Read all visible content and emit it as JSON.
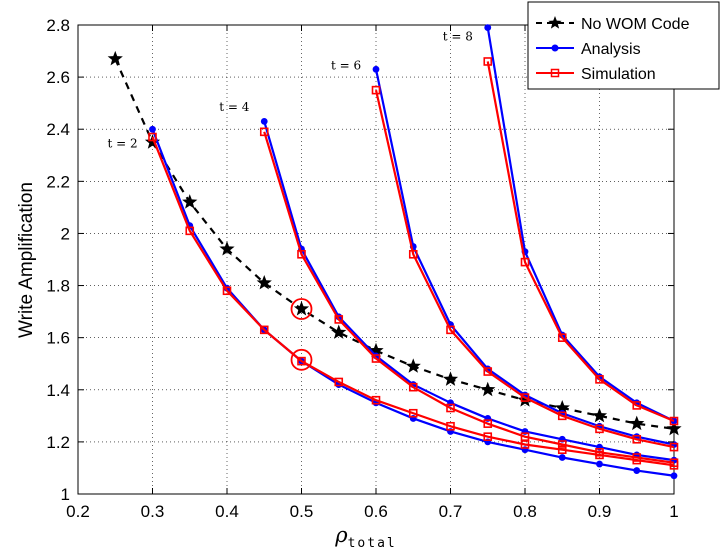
{
  "chart_data": {
    "type": "line",
    "title": "",
    "xlabel": "ρ",
    "xlabel_sub": "total",
    "ylabel": "Write Amplification",
    "xlim": [
      0.2,
      1.0
    ],
    "ylim": [
      1.0,
      2.8
    ],
    "xticks": [
      "0.2",
      "0.3",
      "0.4",
      "0.5",
      "0.6",
      "0.7",
      "0.8",
      "0.9",
      "1"
    ],
    "yticks": [
      "1",
      "1.2",
      "1.4",
      "1.6",
      "1.8",
      "2",
      "2.2",
      "2.4",
      "2.6",
      "2.8"
    ],
    "legend_position": "top-right",
    "legend": [
      "No WOM Code",
      "Analysis",
      "Simulation"
    ],
    "colors": {
      "no_wom": "#000000",
      "analysis": "#0000ff",
      "simulation": "#ff0000",
      "highlight": "#ff0000"
    },
    "t_labels": [
      {
        "text": "t = 2",
        "x": 0.28,
        "y": 2.33
      },
      {
        "text": "t = 4",
        "x": 0.43,
        "y": 2.47
      },
      {
        "text": "t = 6",
        "x": 0.58,
        "y": 2.63
      },
      {
        "text": "t = 8",
        "x": 0.73,
        "y": 2.74
      }
    ],
    "series": [
      {
        "name": "No WOM Code",
        "style": "dashed-star",
        "x": [
          0.25,
          0.3,
          0.35,
          0.4,
          0.45,
          0.5,
          0.55,
          0.6,
          0.65,
          0.7,
          0.75,
          0.8,
          0.85,
          0.9,
          0.95,
          1.0
        ],
        "y": [
          2.67,
          2.35,
          2.12,
          1.94,
          1.81,
          1.71,
          1.62,
          1.55,
          1.49,
          1.44,
          1.4,
          1.36,
          1.33,
          1.3,
          1.27,
          1.25
        ]
      },
      {
        "name": "Analysis t=2",
        "style": "analysis",
        "legend_ref": "Analysis",
        "x": [
          0.3,
          0.35,
          0.4,
          0.45,
          0.5,
          0.55,
          0.6,
          0.65,
          0.7,
          0.75,
          0.8,
          0.85,
          0.9,
          0.95,
          1.0
        ],
        "y": [
          2.4,
          2.03,
          1.79,
          1.63,
          1.51,
          1.42,
          1.35,
          1.29,
          1.24,
          1.2,
          1.17,
          1.14,
          1.115,
          1.09,
          1.07
        ]
      },
      {
        "name": "Simulation t=2",
        "style": "simulation",
        "legend_ref": "Simulation",
        "x": [
          0.3,
          0.35,
          0.4,
          0.45,
          0.5,
          0.55,
          0.6,
          0.65,
          0.7,
          0.75,
          0.8,
          0.85,
          0.9,
          0.95,
          1.0
        ],
        "y": [
          2.37,
          2.01,
          1.78,
          1.63,
          1.51,
          1.43,
          1.36,
          1.31,
          1.26,
          1.22,
          1.19,
          1.17,
          1.15,
          1.13,
          1.11
        ]
      },
      {
        "name": "Analysis t=4",
        "style": "analysis",
        "x": [
          0.45,
          0.5,
          0.55,
          0.6,
          0.65,
          0.7,
          0.75,
          0.8,
          0.85,
          0.9,
          0.95,
          1.0
        ],
        "y": [
          2.43,
          1.94,
          1.68,
          1.53,
          1.42,
          1.35,
          1.29,
          1.24,
          1.21,
          1.18,
          1.15,
          1.13
        ]
      },
      {
        "name": "Simulation t=4",
        "style": "simulation",
        "x": [
          0.45,
          0.5,
          0.55,
          0.6,
          0.65,
          0.7,
          0.75,
          0.8,
          0.85,
          0.9,
          0.95,
          1.0
        ],
        "y": [
          2.39,
          1.92,
          1.67,
          1.52,
          1.41,
          1.33,
          1.27,
          1.22,
          1.19,
          1.16,
          1.14,
          1.12
        ]
      },
      {
        "name": "Analysis t=6",
        "style": "analysis",
        "x": [
          0.6,
          0.65,
          0.7,
          0.75,
          0.8,
          0.85,
          0.9,
          0.95,
          1.0
        ],
        "y": [
          2.63,
          1.95,
          1.65,
          1.48,
          1.38,
          1.31,
          1.26,
          1.22,
          1.19
        ]
      },
      {
        "name": "Simulation t=6",
        "style": "simulation",
        "x": [
          0.6,
          0.65,
          0.7,
          0.75,
          0.8,
          0.85,
          0.9,
          0.95,
          1.0
        ],
        "y": [
          2.55,
          1.92,
          1.63,
          1.47,
          1.37,
          1.3,
          1.25,
          1.21,
          1.18
        ]
      },
      {
        "name": "Analysis t=8",
        "style": "analysis",
        "x": [
          0.75,
          0.8,
          0.85,
          0.9,
          0.95,
          1.0
        ],
        "y": [
          2.79,
          1.93,
          1.61,
          1.45,
          1.35,
          1.28
        ]
      },
      {
        "name": "Simulation t=8",
        "style": "simulation",
        "x": [
          0.75,
          0.8,
          0.85,
          0.9,
          0.95,
          1.0
        ],
        "y": [
          2.66,
          1.89,
          1.6,
          1.44,
          1.34,
          1.28
        ]
      }
    ],
    "highlights": [
      {
        "x": 0.5,
        "y": 1.71
      },
      {
        "x": 0.5,
        "y": 1.515
      }
    ]
  }
}
